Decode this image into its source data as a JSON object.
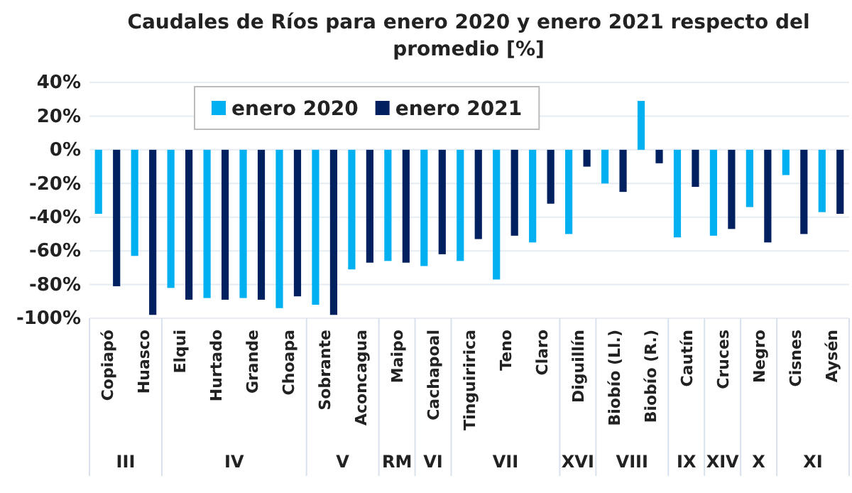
{
  "chart_data": {
    "type": "bar",
    "title": "Caudales de Ríos para enero 2020 y enero 2021 respecto del promedio [%]",
    "categories": [
      "Copiapó",
      "Huasco",
      "Elqui",
      "Hurtado",
      "Grande",
      "Choapa",
      "Sobrante",
      "Aconcagua",
      "Maipo",
      "Cachapoal",
      "Tinguiririca",
      "Teno",
      "Claro",
      "Diguillín",
      "Biobío (Ll.)",
      "Biobío (R.)",
      "Cautín",
      "Cruces",
      "Negro",
      "Cisnes",
      "Aysén"
    ],
    "series": [
      {
        "name": "enero 2020",
        "color": "#00b0f0",
        "values": [
          -38,
          -63,
          -82,
          -88,
          -88,
          -94,
          -92,
          -71,
          -66,
          -69,
          -66,
          -77,
          -55,
          -50,
          -20,
          29,
          -52,
          -51,
          -34,
          -15,
          -37
        ]
      },
      {
        "name": "enero 2021",
        "color": "#002060",
        "values": [
          -81,
          -98,
          -89,
          -89,
          -89,
          -87,
          -98,
          -67,
          -67,
          -62,
          -53,
          -51,
          -32,
          -10,
          -25,
          -8,
          -22,
          -47,
          -55,
          -50,
          -38
        ]
      }
    ],
    "ylim": [
      -100,
      40
    ],
    "yticks": [
      {
        "value": -100,
        "label": "-100%"
      },
      {
        "value": -80,
        "label": "-80%"
      },
      {
        "value": -60,
        "label": "-60%"
      },
      {
        "value": -40,
        "label": "-40%"
      },
      {
        "value": -20,
        "label": "-20%"
      },
      {
        "value": 0,
        "label": "0%"
      },
      {
        "value": 20,
        "label": "20%"
      },
      {
        "value": 40,
        "label": "40%"
      }
    ],
    "grid": "y",
    "legend": "top",
    "annotations": [
      "III",
      "IV",
      "V",
      "RM",
      "VI",
      "VII",
      "XVI",
      "VIII",
      "IX",
      "XIV",
      "X",
      "XI"
    ]
  }
}
